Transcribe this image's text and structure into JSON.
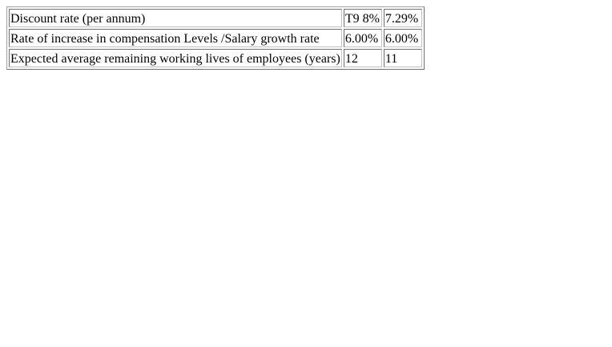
{
  "table": {
    "rows": [
      {
        "label": "Discount rate (per annum)",
        "current": "T9 8%",
        "previous": "7.29%"
      },
      {
        "label": "Rate of increase in compensation Levels /Salary growth rate",
        "current": "6.00%",
        "previous": "6.00%"
      },
      {
        "label": "Expected average remaining working lives of employees (years)",
        "current": "12",
        "previous": "11"
      }
    ]
  }
}
